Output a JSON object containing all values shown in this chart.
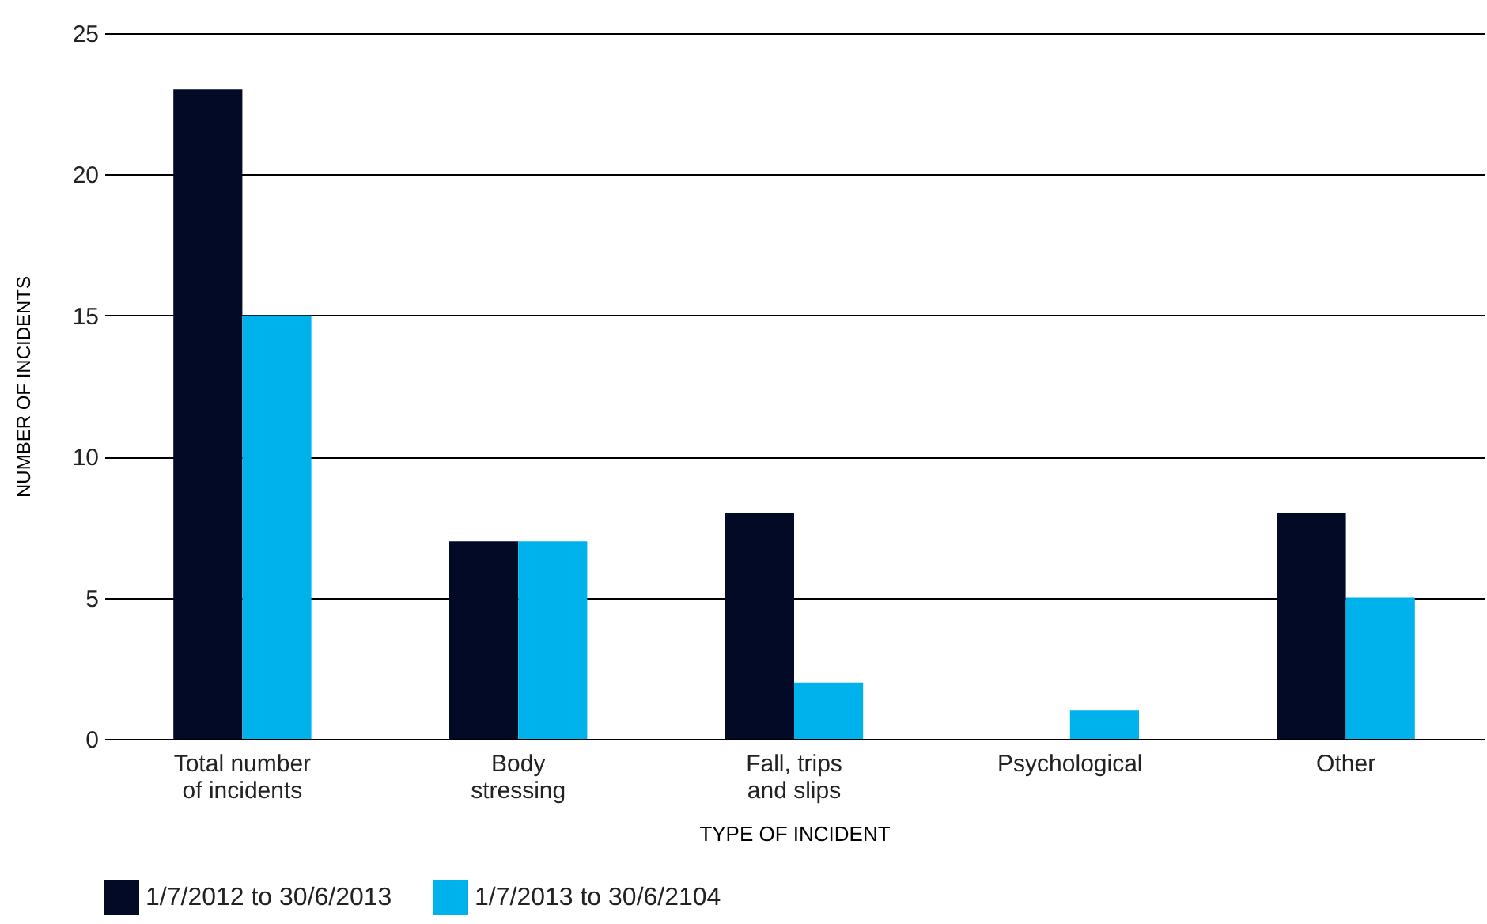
{
  "chart_data": {
    "type": "bar",
    "xlabel": "TYPE OF INCIDENT",
    "ylabel": "NUMBER OF INCIDENTS",
    "categories": [
      "Total number of incidents",
      "Body stressing",
      "Fall, trips and slips",
      "Psychological",
      "Other"
    ],
    "series": [
      {
        "name": "1/7/2012 to 30/6/2013",
        "color": "#020a26",
        "values": [
          23,
          7,
          8,
          0,
          8
        ]
      },
      {
        "name": "1/7/2013 to 30/6/2104",
        "color": "#00b2ec",
        "values": [
          15,
          7,
          2,
          1,
          5
        ]
      }
    ],
    "ylim": [
      0,
      25
    ],
    "yticks": [
      0,
      5,
      10,
      15,
      20,
      25
    ],
    "grid": "y",
    "legend": "bottom"
  }
}
